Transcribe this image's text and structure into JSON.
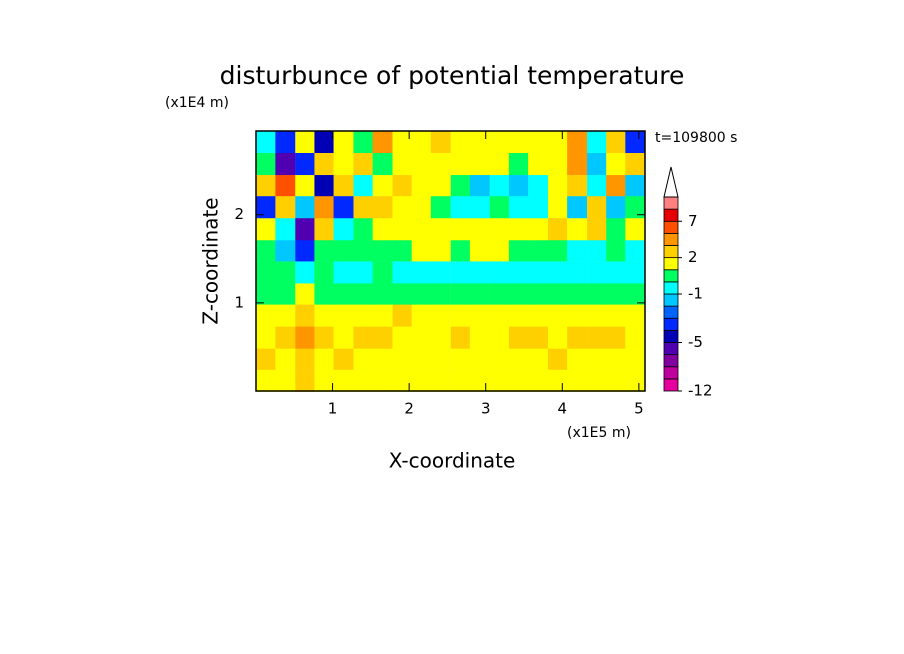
{
  "chart_data": {
    "type": "contourf",
    "title": "disturbunce of potential temperature",
    "x_label": "X-coordinate",
    "y_label": "Z-coordinate",
    "x_unit": "(x1E5 m)",
    "y_unit": "(x1E4 m)",
    "annotation": "t=109800 s",
    "xlim": [
      0,
      5.08
    ],
    "ylim": [
      0,
      2.95
    ],
    "xticks": [
      1,
      2,
      3,
      4,
      5
    ],
    "yticks": [
      1,
      2
    ],
    "x": [
      0.13,
      0.38,
      0.64,
      0.89,
      1.14,
      1.4,
      1.65,
      1.91,
      2.16,
      2.41,
      2.67,
      2.92,
      3.18,
      3.43,
      3.68,
      3.94,
      4.19,
      4.45,
      4.7,
      4.95
    ],
    "y": [
      0.12,
      0.37,
      0.61,
      0.86,
      1.11,
      1.35,
      1.6,
      1.84,
      2.09,
      2.34,
      2.58,
      2.83
    ],
    "z": [
      [
        1.5,
        1.5,
        2.5,
        1.5,
        1.5,
        1.5,
        1.5,
        1.5,
        1.5,
        1.5,
        1.5,
        1.5,
        1.5,
        1.5,
        1.5,
        1.5,
        1.5,
        1.5,
        1.5,
        1.5
      ],
      [
        2.5,
        1.5,
        2.5,
        1.5,
        2.5,
        1.5,
        1.5,
        1.5,
        1.5,
        1.5,
        1.5,
        1.5,
        1.5,
        1.5,
        1.5,
        2.5,
        1.5,
        1.5,
        1.5,
        1.5
      ],
      [
        1.5,
        2.5,
        3.5,
        2.5,
        1.5,
        2.5,
        2.5,
        1.5,
        1.5,
        1.5,
        2.5,
        1.5,
        1.5,
        2.5,
        2.5,
        1.5,
        2.5,
        2.5,
        2.5,
        1.5
      ],
      [
        1.5,
        1.5,
        2.5,
        1.5,
        1.5,
        1.5,
        1.5,
        2.5,
        1.5,
        1.5,
        1.5,
        1.5,
        1.5,
        1.5,
        1.5,
        1.5,
        1.5,
        1.5,
        1.5,
        1.5
      ],
      [
        0.5,
        0.5,
        1.5,
        0.5,
        0.5,
        0.5,
        0.5,
        0.5,
        0.5,
        0.5,
        0.5,
        0.5,
        0.5,
        0.5,
        0.5,
        0.5,
        0.5,
        0.5,
        0.5,
        0.5
      ],
      [
        0.5,
        0.5,
        -0.5,
        0.5,
        -0.5,
        -0.5,
        0.5,
        -0.5,
        -0.5,
        -0.5,
        -0.5,
        -0.5,
        -0.5,
        -0.5,
        -0.5,
        -0.5,
        -0.5,
        -0.5,
        -0.5,
        -0.5
      ],
      [
        0.5,
        -1.5,
        -3.5,
        0.5,
        0.5,
        0.5,
        0.5,
        0.5,
        1.5,
        1.5,
        0.5,
        1.5,
        1.5,
        0.5,
        0.5,
        0.5,
        -0.5,
        -0.5,
        0.5,
        -0.5
      ],
      [
        1.5,
        -0.5,
        -5.5,
        2.5,
        -0.5,
        0.5,
        1.5,
        1.5,
        1.5,
        1.5,
        1.5,
        1.5,
        1.5,
        1.5,
        1.5,
        2.5,
        1.5,
        2.5,
        0.5,
        1.5
      ],
      [
        -3.5,
        2.5,
        -1.5,
        3.5,
        -3.5,
        2.5,
        2.5,
        1.5,
        1.5,
        0.5,
        -0.5,
        -0.5,
        0.5,
        -0.5,
        -0.5,
        1.5,
        -1.5,
        2.5,
        -1.5,
        0.5
      ],
      [
        2.5,
        5.5,
        1.5,
        -4.5,
        2.5,
        -0.5,
        1.5,
        2.5,
        1.5,
        1.5,
        0.5,
        -1.5,
        -0.5,
        -1.5,
        -0.5,
        1.5,
        2.5,
        -0.5,
        3.5,
        -1.5
      ],
      [
        0.5,
        -5.5,
        -3.5,
        2.5,
        1.5,
        2.5,
        0.5,
        1.5,
        1.5,
        1.5,
        1.5,
        1.5,
        1.5,
        0.5,
        1.5,
        1.5,
        3.5,
        -1.5,
        1.5,
        2.5
      ],
      [
        -0.5,
        -3.5,
        1.5,
        -4.5,
        1.5,
        0.5,
        3.5,
        1.5,
        1.5,
        2.5,
        1.5,
        1.5,
        1.5,
        1.5,
        1.5,
        1.5,
        3.5,
        -0.5,
        2.5,
        -3.5
      ]
    ],
    "levels": [
      -12,
      -10,
      -8,
      -6,
      -5,
      -4,
      -3,
      -2,
      -1,
      0,
      1,
      2,
      3,
      5,
      7,
      9,
      11
    ],
    "colors": [
      "#e6009e",
      "#c0009e",
      "#8000a0",
      "#5000b0",
      "#0000b4",
      "#0028ff",
      "#0064ff",
      "#00c8ff",
      "#00ffff",
      "#00ff60",
      "#ffff00",
      "#ffd000",
      "#ff9600",
      "#ff5000",
      "#e60000",
      "#ff8080"
    ],
    "colorbar_ticks": [
      -12,
      -5,
      -1,
      2,
      7
    ]
  }
}
